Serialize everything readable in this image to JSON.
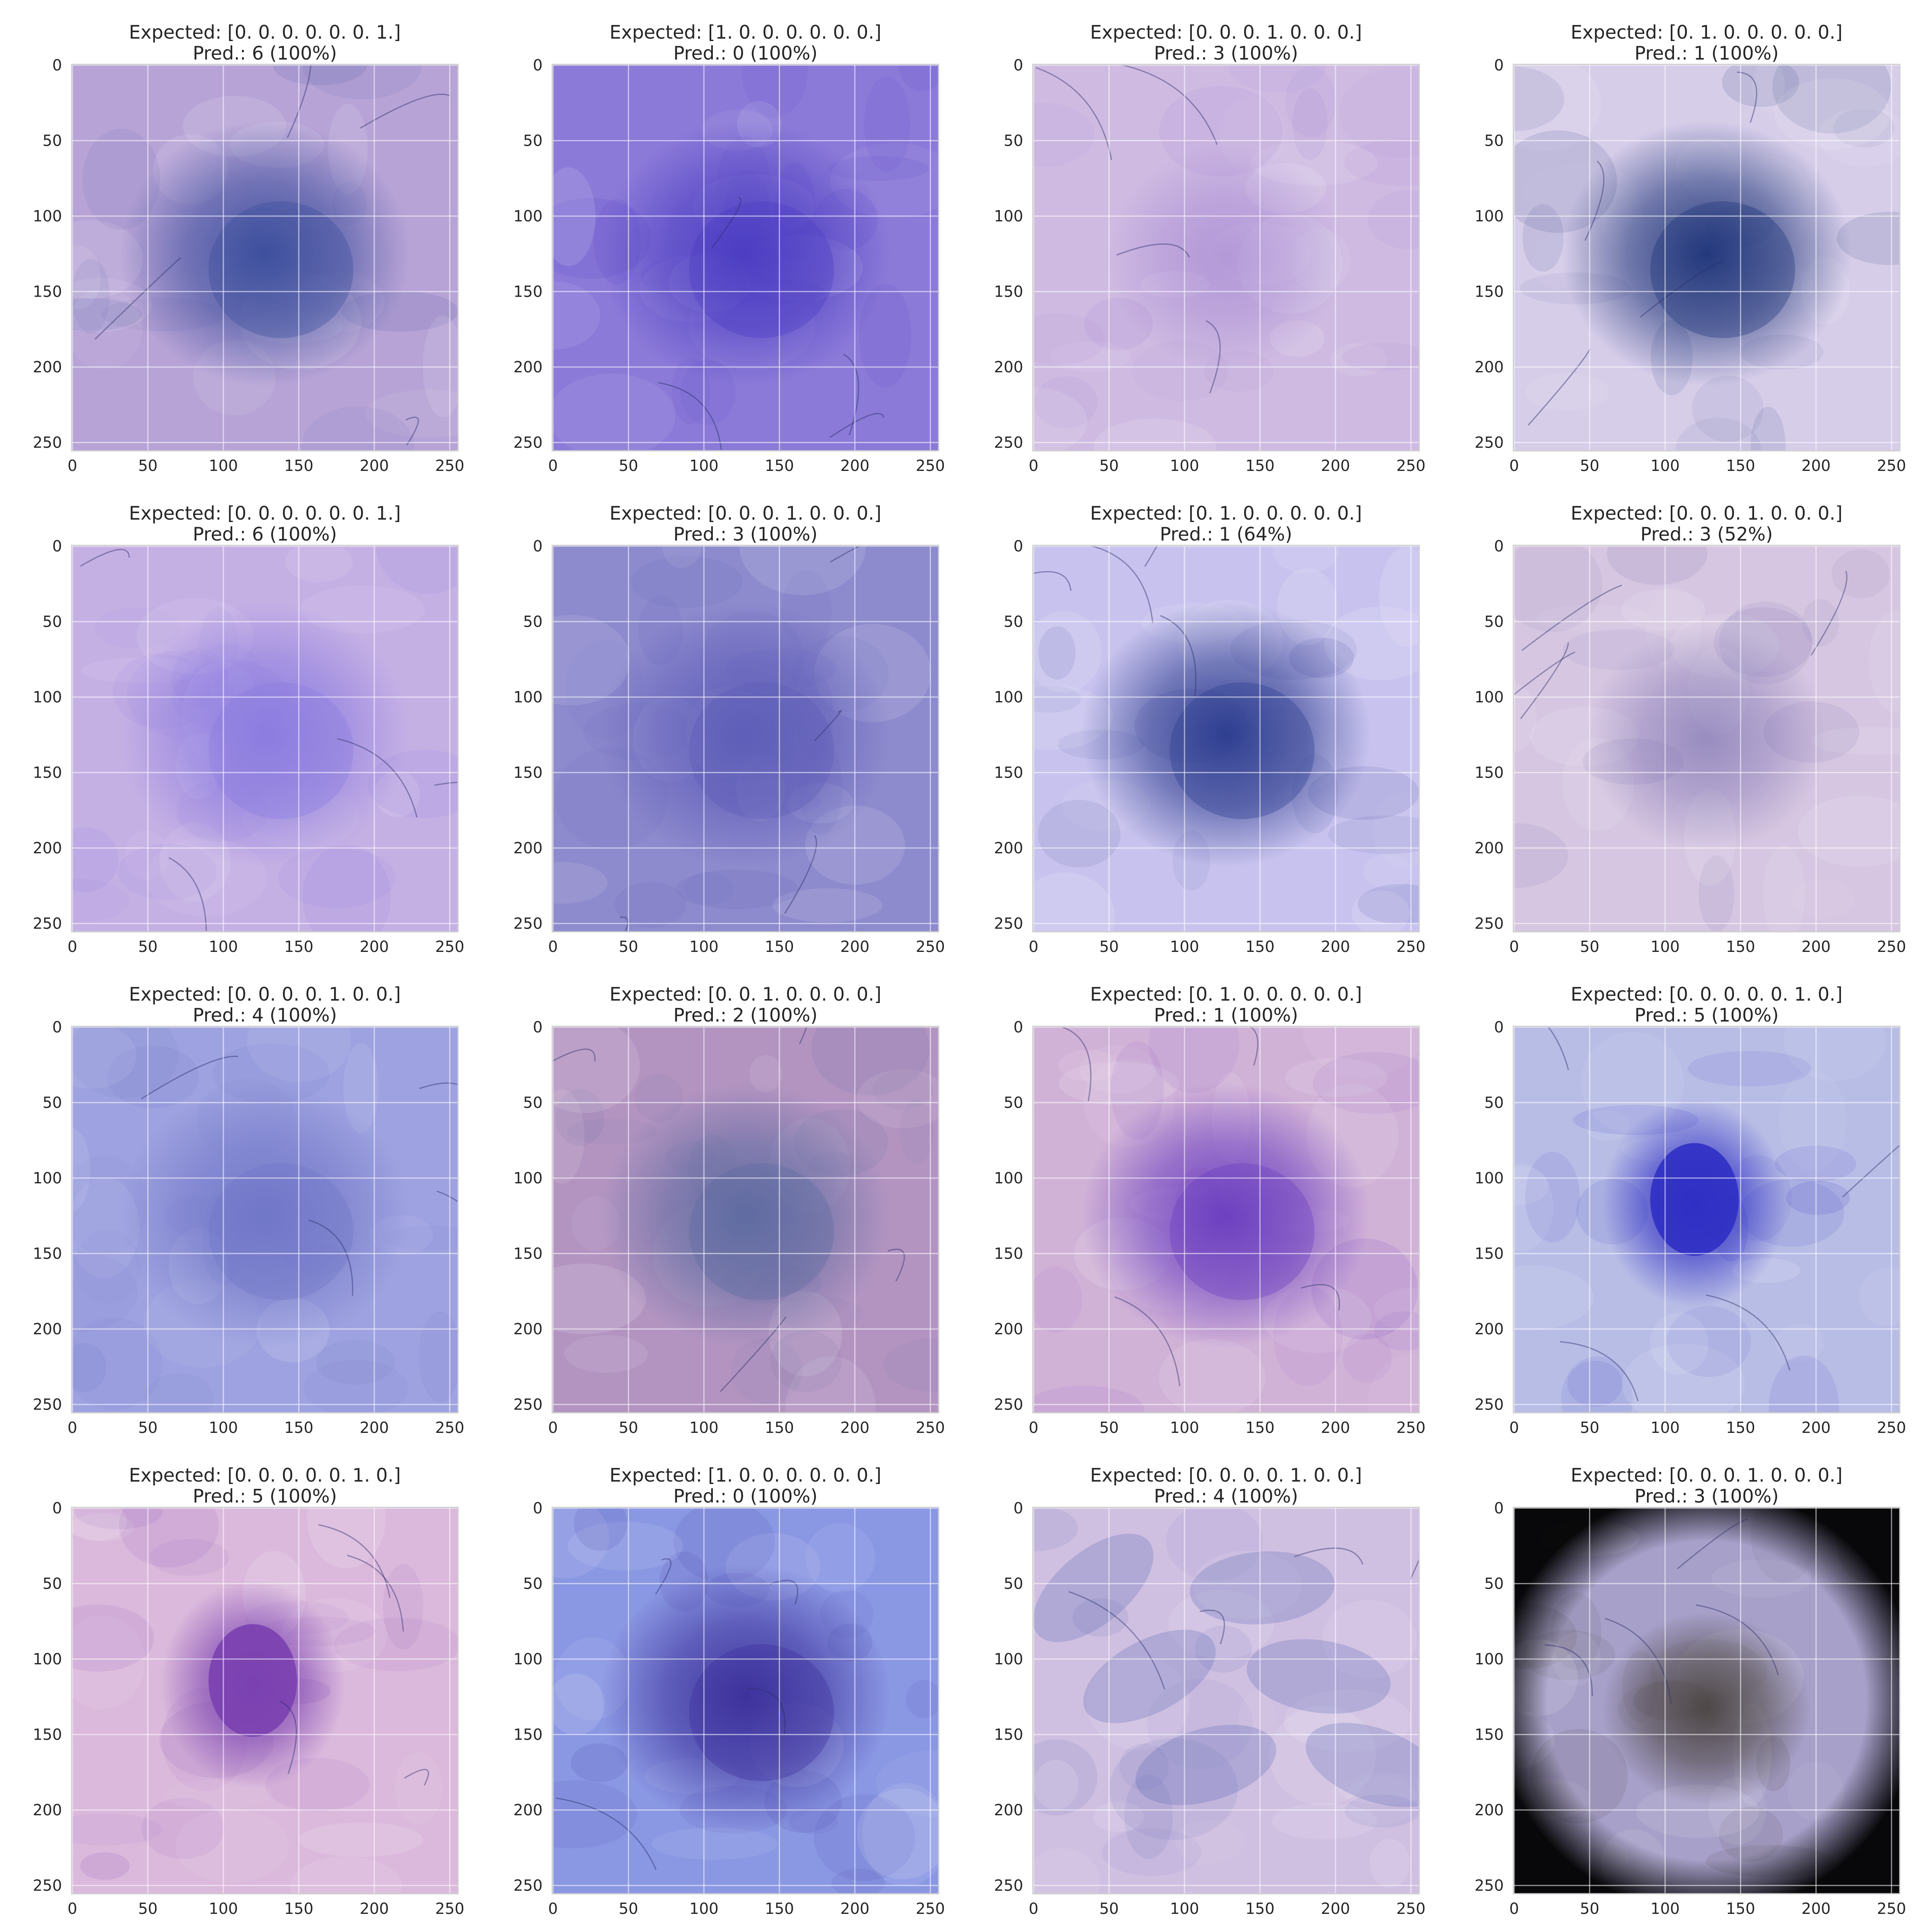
{
  "figure": {
    "axis_ticks": [
      "0",
      "50",
      "100",
      "150",
      "200",
      "250"
    ],
    "panels": [
      {
        "expected": "Expected: [0. 0. 0. 0. 0. 0. 1.]",
        "pred": "Pred.: 6 (100%)",
        "bg": "#b7a3d6",
        "lesion": "#3a4c9c",
        "tone": "lesion-dark-violet"
      },
      {
        "expected": "Expected: [1. 0. 0. 0. 0. 0. 0.]",
        "pred": "Pred.: 0 (100%)",
        "bg": "#8b7ad8",
        "lesion": "#4a3bc2",
        "tone": "lesion-violet"
      },
      {
        "expected": "Expected: [0. 0. 0. 1. 0. 0. 0.]",
        "pred": "Pred.: 3 (100%)",
        "bg": "#cfbbe2",
        "lesion": "#9c7ccf",
        "tone": "lesion-faint"
      },
      {
        "expected": "Expected: [0. 1. 0. 0. 0. 0. 0.]",
        "pred": "Pred.: 1 (100%)",
        "bg": "#d6cde9",
        "lesion": "#1e3479",
        "tone": "lesion-dark-blue"
      },
      {
        "expected": "Expected: [0. 0. 0. 0. 0. 0. 1.]",
        "pred": "Pred.: 6 (100%)",
        "bg": "#c5b0e4",
        "lesion": "#8a7ae0",
        "tone": "lesion-pink-violet"
      },
      {
        "expected": "Expected: [0. 0. 0. 1. 0. 0. 0.]",
        "pred": "Pred.: 3 (100%)",
        "bg": "#8d8acd",
        "lesion": "#5d5cb8",
        "tone": "lesion-mottled"
      },
      {
        "expected": "Expected: [0. 1. 0. 0. 0. 0. 0.]",
        "pred": "Pred.: 1 (64%)",
        "bg": "#c8c3ee",
        "lesion": "#2b3b8e",
        "tone": "lesion-dark-blue"
      },
      {
        "expected": "Expected: [0. 0. 0. 1. 0. 0. 0.]",
        "pred": "Pred.: 3 (52%)",
        "bg": "#d6c6e1",
        "lesion": "#6a61a7",
        "tone": "lesion-faint"
      },
      {
        "expected": "Expected: [0. 0. 0. 0. 1. 0. 0.]",
        "pred": "Pred.: 4 (100%)",
        "bg": "#9ea2e0",
        "lesion": "#7076c7",
        "tone": "lesion-mottled"
      },
      {
        "expected": "Expected: [0. 0. 1. 0. 0. 0. 0.]",
        "pred": "Pred.: 2 (100%)",
        "bg": "#b394c1",
        "lesion": "#5d6aa0",
        "tone": "lesion-grey-blue"
      },
      {
        "expected": "Expected: [0. 1. 0. 0. 0. 0. 0.]",
        "pred": "Pred.: 1 (100%)",
        "bg": "#d1b2d7",
        "lesion": "#6a3cc0",
        "tone": "lesion-violet"
      },
      {
        "expected": "Expected: [0. 0. 0. 0. 0. 1. 0.]",
        "pred": "Pred.: 5 (100%)",
        "bg": "#b8bde6",
        "lesion": "#2f2fc4",
        "tone": "lesion-spot"
      },
      {
        "expected": "Expected: [0. 0. 0. 0. 0. 1. 0.]",
        "pred": "Pred.: 5 (100%)",
        "bg": "#dbb9dc",
        "lesion": "#7a40b0",
        "tone": "lesion-spot"
      },
      {
        "expected": "Expected: [1. 0. 0. 0. 0. 0. 0.]",
        "pred": "Pred.: 0 (100%)",
        "bg": "#8a97e3",
        "lesion": "#3b2f9a",
        "tone": "lesion-dark-violet"
      },
      {
        "expected": "Expected: [0. 0. 0. 0. 1. 0. 0.]",
        "pred": "Pred.: 4 (100%)",
        "bg": "#cfbfe1",
        "lesion": "#5464b2",
        "tone": "lesion-streaks"
      },
      {
        "expected": "Expected: [0. 0. 0. 1. 0. 0. 0.]",
        "pred": "Pred.: 3 (100%)",
        "bg": "#a7a0c9",
        "lesion": "#4a4340",
        "tone": "lesion-dark-vignette"
      }
    ]
  }
}
